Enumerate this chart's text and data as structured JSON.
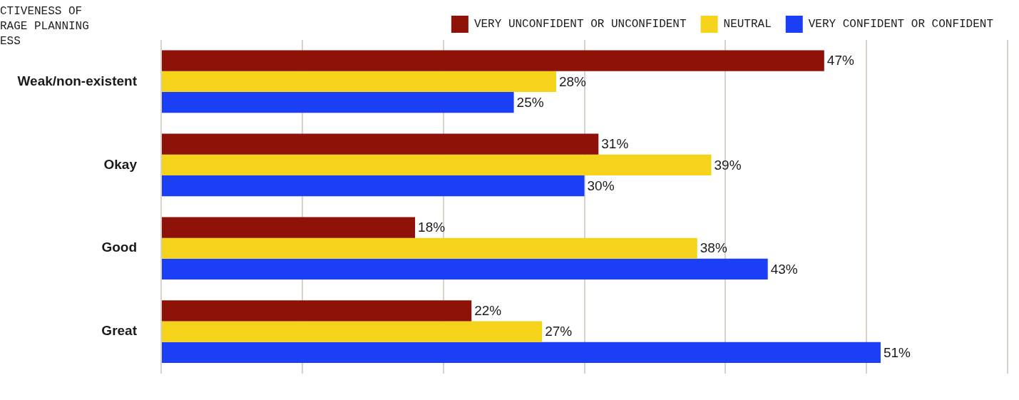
{
  "chart_data": {
    "type": "bar",
    "orientation": "horizontal",
    "ylabel": "CTIVENESS OF\nRAGE PLANNING\nESS",
    "categories": [
      "Weak/non-existent",
      "Okay",
      "Good",
      "Great"
    ],
    "series": [
      {
        "name": "VERY UNCONFIDENT OR UNCONFIDENT",
        "color": "#8e1208",
        "values": [
          47,
          31,
          18,
          22
        ],
        "value_labels": [
          "47%",
          "31%",
          "18%",
          "22%"
        ]
      },
      {
        "name": "NEUTRAL",
        "color": "#f5d31a",
        "values": [
          28,
          39,
          38,
          27
        ],
        "value_labels": [
          "28%",
          "39%",
          "38%",
          "27%"
        ]
      },
      {
        "name": "VERY CONFIDENT OR CONFIDENT",
        "color": "#1a3ff5",
        "values": [
          25,
          30,
          43,
          51
        ],
        "value_labels": [
          "25%",
          "30%",
          "43%",
          "51%"
        ]
      }
    ],
    "tick_labels": "y",
    "grid": "x",
    "legend": "top right"
  }
}
